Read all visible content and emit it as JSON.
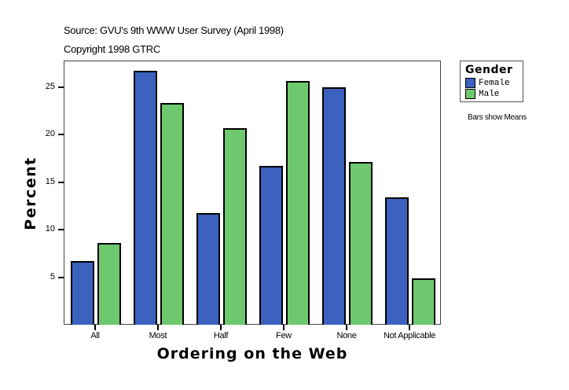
{
  "header": {
    "source": "Source: GVU's 9th WWW User Survey (April 1998)",
    "copyright": "Copyright 1998 GTRC"
  },
  "legend": {
    "title": "Gender",
    "items": [
      {
        "label": "Female",
        "color": "#3a62be"
      },
      {
        "label": "Male",
        "color": "#6ec86e"
      }
    ]
  },
  "note": "Bars show Means",
  "axes": {
    "ylabel": "Percent",
    "xlabel": "Ordering on the Web",
    "yticks": [
      "5",
      "10",
      "15",
      "20",
      "25"
    ]
  },
  "chart_data": {
    "type": "bar",
    "title": "",
    "subtitle": "Source: GVU's 9th WWW User Survey (April 1998) / Copyright 1998 GTRC",
    "xlabel": "Ordering on the Web",
    "ylabel": "Percent",
    "categories": [
      "All",
      "Most",
      "Half",
      "Few",
      "None",
      "Not Applicable"
    ],
    "series": [
      {
        "name": "Female",
        "color": "#3a62be",
        "values": [
          6.7,
          26.7,
          11.7,
          16.7,
          25.0,
          13.4
        ]
      },
      {
        "name": "Male",
        "color": "#6ec86e",
        "values": [
          8.6,
          23.3,
          20.7,
          25.6,
          17.1,
          4.9
        ]
      }
    ],
    "ylim": [
      0,
      27.7
    ],
    "yticks": [
      5,
      10,
      15,
      20,
      25
    ],
    "grid": false,
    "legend_position": "right",
    "legend_title": "Gender",
    "annotations": [
      "Bars show Means"
    ]
  }
}
